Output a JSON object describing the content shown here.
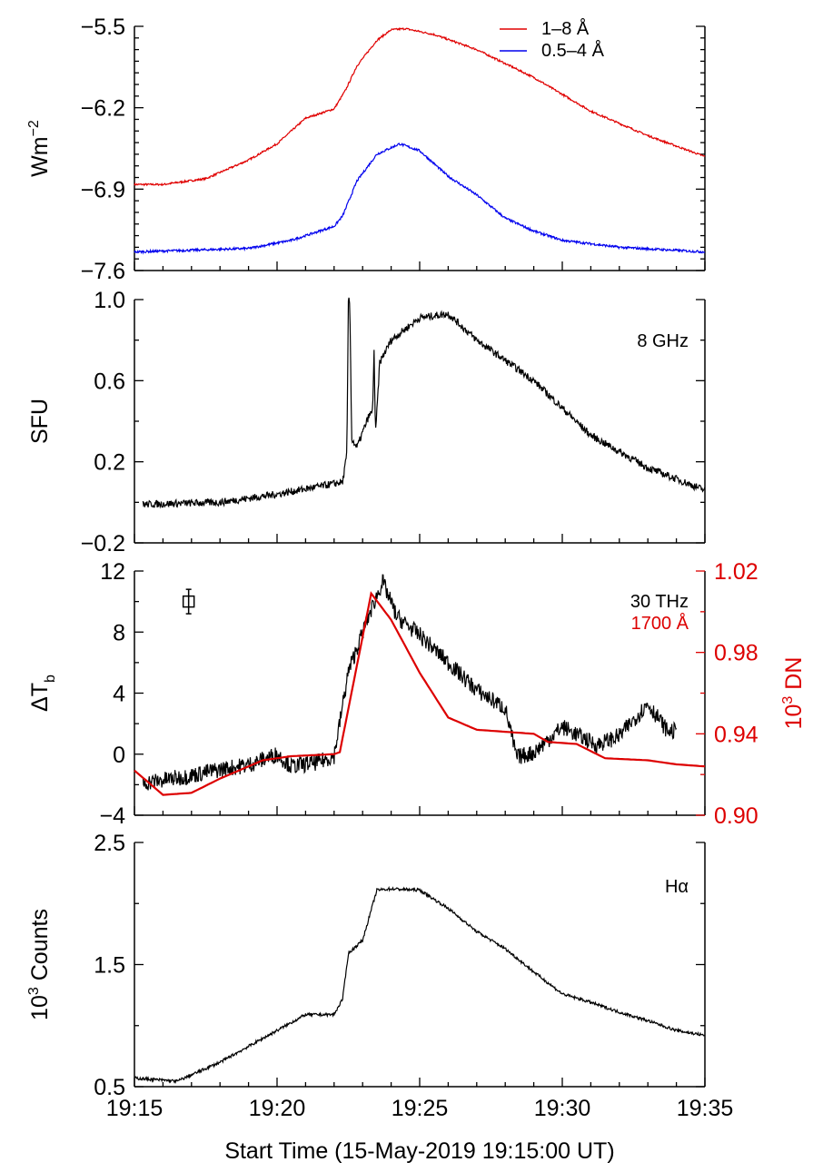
{
  "chart_data": {
    "type": "line",
    "xlabel": "Start Time (15-May-2019 19:15:00 UT)",
    "x_unit": "minutes since 19:15:00",
    "xlim": [
      0,
      20
    ],
    "x_ticks": [
      {
        "value": 0,
        "label": "19:15"
      },
      {
        "value": 5,
        "label": "19:20"
      },
      {
        "value": 10,
        "label": "19:25"
      },
      {
        "value": 15,
        "label": "19:30"
      },
      {
        "value": 20,
        "label": "19:35"
      }
    ],
    "panels": [
      {
        "id": "goes",
        "ylabel": "Wm",
        "ylabel_sup": "−2",
        "ylim": [
          -7.6,
          -5.5
        ],
        "y_ticks": [
          {
            "value": -5.5,
            "label": "−5.5"
          },
          {
            "value": -6.2,
            "label": "−6.2"
          },
          {
            "value": -6.9,
            "label": "−6.9"
          },
          {
            "value": -7.6,
            "label": "−7.6"
          }
        ],
        "y_minor_step": 0.1,
        "legend": "top-right",
        "series": [
          {
            "name": "1–8 Å",
            "color": "#e00000",
            "noise": 0.008,
            "x": [
              0,
              1,
              2.5,
              4,
              5,
              6,
              7,
              7.4,
              7.8,
              8.5,
              9,
              9.5,
              10.5,
              12,
              14,
              16,
              18,
              20
            ],
            "y": [
              -6.86,
              -6.86,
              -6.81,
              -6.65,
              -6.51,
              -6.29,
              -6.21,
              -6.05,
              -5.84,
              -5.62,
              -5.53,
              -5.52,
              -5.57,
              -5.7,
              -5.94,
              -6.23,
              -6.44,
              -6.62
            ]
          },
          {
            "name": "0.5–4 Å",
            "color": "#0000ee",
            "noise": 0.01,
            "x": [
              0,
              4,
              5.5,
              6.5,
              7,
              7.3,
              7.8,
              8.5,
              9.3,
              10,
              11,
              12,
              13,
              14,
              15,
              17,
              20
            ],
            "y": [
              -7.44,
              -7.41,
              -7.34,
              -7.26,
              -7.22,
              -7.13,
              -6.83,
              -6.6,
              -6.51,
              -6.57,
              -6.79,
              -6.95,
              -7.15,
              -7.26,
              -7.34,
              -7.4,
              -7.44
            ]
          }
        ]
      },
      {
        "id": "radio",
        "ylabel": "SFU",
        "ylim": [
          -0.2,
          1.0
        ],
        "y_ticks": [
          {
            "value": -0.2,
            "label": "−0.2"
          },
          {
            "value": 0.2,
            "label": "0.2"
          },
          {
            "value": 0.6,
            "label": "0.6"
          },
          {
            "value": 1.0,
            "label": "1.0"
          }
        ],
        "y_minor_step": 0.2,
        "annotation": "8 GHz",
        "series": [
          {
            "name": "8 GHz",
            "color": "#000000",
            "noise": 0.018,
            "x": [
              0.3,
              3,
              5,
              7.3,
              7.45,
              7.5,
              7.55,
              7.62,
              7.8,
              8.2,
              8.35,
              8.4,
              8.45,
              8.6,
              9,
              10,
              11,
              12,
              14,
              16,
              18,
              20
            ],
            "y": [
              -0.01,
              0.0,
              0.04,
              0.1,
              0.24,
              1.0,
              0.98,
              0.31,
              0.27,
              0.42,
              0.45,
              0.75,
              0.33,
              0.69,
              0.8,
              0.91,
              0.93,
              0.8,
              0.6,
              0.33,
              0.17,
              0.06
            ]
          }
        ]
      },
      {
        "id": "thz",
        "ylabel": "ΔT",
        "ylabel_sub": "b",
        "ylim": [
          -4,
          12
        ],
        "y_ticks": [
          {
            "value": -4,
            "label": "−4"
          },
          {
            "value": 0,
            "label": "0"
          },
          {
            "value": 4,
            "label": "4"
          },
          {
            "value": 8,
            "label": "8"
          },
          {
            "value": 12,
            "label": "12"
          }
        ],
        "y_minor_step": 2,
        "right_axis": {
          "ylabel": "10",
          "ylabel_sup": "3",
          "ylabel_suffix": " DN",
          "color": "#dd0000",
          "ylim": [
            0.9,
            1.02
          ],
          "y_ticks": [
            {
              "value": 0.9,
              "label": "0.90"
            },
            {
              "value": 0.94,
              "label": "0.94"
            },
            {
              "value": 0.98,
              "label": "0.98"
            },
            {
              "value": 1.02,
              "label": "1.02"
            }
          ],
          "y_minor_step": 0.02
        },
        "annotations": [
          "30 THz",
          "1700 Å"
        ],
        "error_bar": {
          "x": 1.9,
          "y": 10,
          "yerr": 0.8
        },
        "series": [
          {
            "name": "30 THz",
            "color": "#000000",
            "axis": "left",
            "noise": 0.55,
            "x": [
              0.3,
              1.7,
              3,
              4,
              5,
              5.5,
              6.5,
              7,
              7.5,
              8.2,
              8.7,
              9.2,
              10,
              11,
              12,
              13,
              13.4,
              14,
              15,
              16.2,
              17,
              18,
              18.7,
              19
            ],
            "y": [
              -1.9,
              -1.5,
              -1.0,
              -0.7,
              0.0,
              -0.8,
              -0.5,
              -0.1,
              5.4,
              9.0,
              11.3,
              9.0,
              7.8,
              6.0,
              4.2,
              3.0,
              -0.2,
              0.1,
              1.8,
              0.6,
              1.2,
              3.3,
              1.5,
              1.5
            ]
          },
          {
            "name": "1700 Å",
            "color": "#dd0000",
            "axis": "right",
            "noise": 0,
            "x": [
              0,
              1,
              2,
              3,
              4.5,
              5.5,
              7,
              7.2,
              8.3,
              9,
              10,
              11,
              12,
              13,
              14,
              14.5,
              15.5,
              16.5,
              18,
              19,
              20
            ],
            "y": [
              0.922,
              0.91,
              0.911,
              0.918,
              0.927,
              0.929,
              0.93,
              0.931,
              1.009,
              0.996,
              0.97,
              0.948,
              0.942,
              0.941,
              0.94,
              0.936,
              0.935,
              0.928,
              0.927,
              0.925,
              0.924
            ]
          }
        ]
      },
      {
        "id": "halpha",
        "ylabel": "10",
        "ylabel_sup": "3",
        "ylabel_suffix": " Counts",
        "ylim": [
          0.5,
          2.5
        ],
        "y_ticks": [
          {
            "value": 0.5,
            "label": "0.5"
          },
          {
            "value": 1.5,
            "label": "1.5"
          },
          {
            "value": 2.5,
            "label": "2.5"
          }
        ],
        "y_minor_step": 0.5,
        "annotation": "Hα",
        "series": [
          {
            "name": "Hα",
            "color": "#000000",
            "noise": 0.012,
            "x": [
              0,
              1.5,
              3,
              5,
              6,
              7,
              7.3,
              7.5,
              8,
              8.5,
              9,
              10,
              11,
              12,
              13,
              14,
              15,
              16,
              17,
              18,
              19,
              20
            ],
            "y": [
              0.57,
              0.545,
              0.7,
              0.96,
              1.09,
              1.09,
              1.22,
              1.59,
              1.7,
              2.11,
              2.12,
              2.11,
              1.96,
              1.77,
              1.63,
              1.44,
              1.26,
              1.19,
              1.11,
              1.04,
              0.96,
              0.92
            ]
          }
        ]
      }
    ]
  }
}
